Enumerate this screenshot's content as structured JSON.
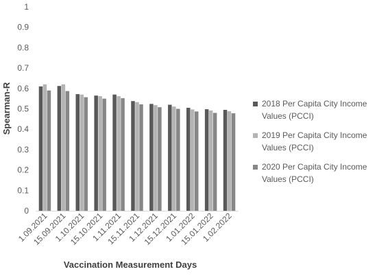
{
  "chart_data": {
    "type": "bar",
    "title": "",
    "xlabel": "Vaccination Measurement Days",
    "ylabel": "Spearman-R",
    "ylim": [
      0,
      1
    ],
    "yticks": [
      "0",
      "0.1",
      "0.2",
      "0.3",
      "0.4",
      "0.5",
      "0.6",
      "0.7",
      "0.8",
      "0.9",
      "1"
    ],
    "grid": false,
    "legend_position": "right",
    "categories": [
      "1.09.2021",
      "15.09.2021",
      "1.10.2021",
      "15.10.2021",
      "1.11.2021",
      "15.11.2021",
      "1.12.2021",
      "15.12.2021",
      "1.01.2022",
      "15.01.2022",
      "1.02.2022"
    ],
    "series": [
      {
        "name": "2018 Per Capita City Income Values (PCCI)",
        "color": "#595959",
        "values": [
          0.61,
          0.612,
          0.572,
          0.565,
          0.57,
          0.538,
          0.524,
          0.52,
          0.505,
          0.498,
          0.495
        ]
      },
      {
        "name": "2019 Per Capita City Income Values (PCCI)",
        "color": "#b4b4b4",
        "values": [
          0.62,
          0.62,
          0.57,
          0.562,
          0.562,
          0.533,
          0.518,
          0.511,
          0.497,
          0.492,
          0.488
        ]
      },
      {
        "name": "2020 Per Capita City Income Values (PCCI)",
        "color": "#878787",
        "values": [
          0.59,
          0.587,
          0.557,
          0.55,
          0.552,
          0.522,
          0.508,
          0.5,
          0.487,
          0.48,
          0.478
        ]
      }
    ]
  }
}
